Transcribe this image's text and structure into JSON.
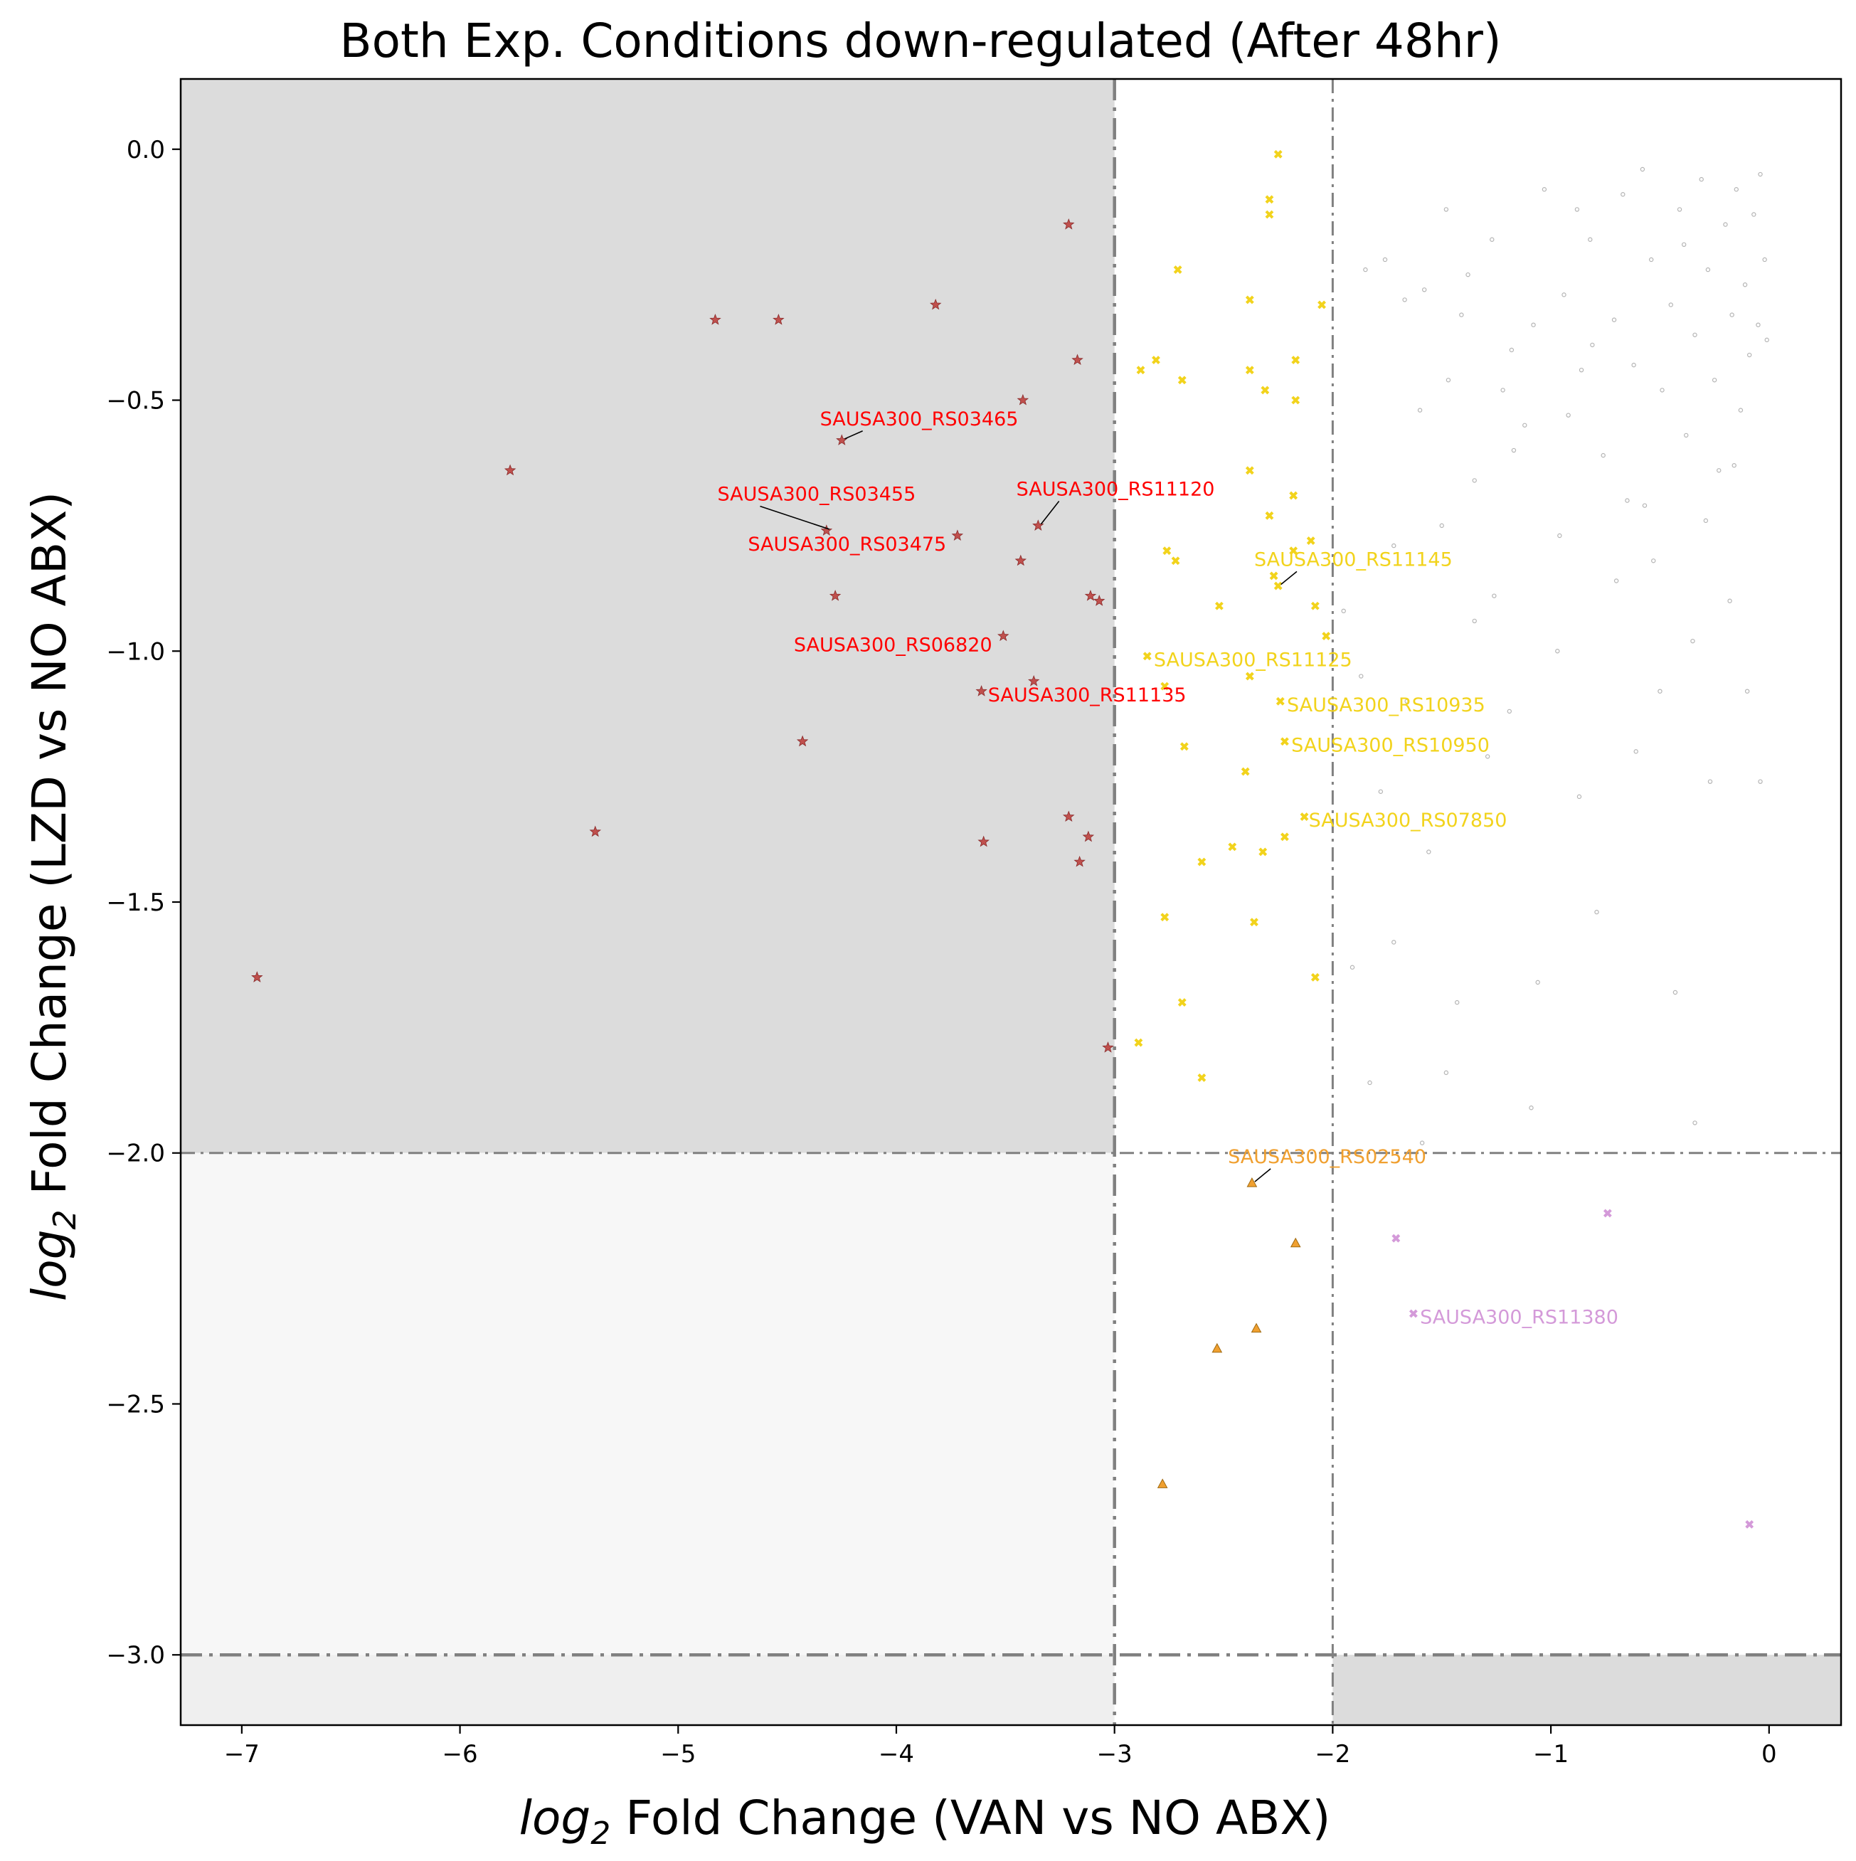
{
  "chart_data": {
    "type": "scatter",
    "title": "Both Exp. Conditions down-regulated (After 48hr)",
    "xlabel_prefix": "log",
    "xlabel_sub": "2",
    "xlabel_rest": " Fold Change (VAN vs NO ABX)",
    "ylabel_prefix": "log",
    "ylabel_sub": "2",
    "ylabel_rest": " Fold Change (LZD vs NO ABX)",
    "xlim": [
      -7.28,
      0.33
    ],
    "ylim": [
      -3.14,
      0.14
    ],
    "xticks": [
      -7,
      -6,
      -5,
      -4,
      -3,
      -2,
      -1,
      0
    ],
    "yticks": [
      0.0,
      -0.5,
      -1.0,
      -1.5,
      -2.0,
      -2.5,
      -3.0
    ],
    "xtick_labels": [
      "−7",
      "−6",
      "−5",
      "−4",
      "−3",
      "−2",
      "−1",
      "0"
    ],
    "ytick_labels": [
      "0.0",
      "−0.5",
      "−1.0",
      "−1.5",
      "−2.0",
      "−2.5",
      "−3.0"
    ],
    "grid": false,
    "threshold_lines": {
      "vertical": [
        -3,
        -2
      ],
      "horizontal": [
        -2,
        -3
      ]
    },
    "shaded_regions": [
      {
        "x": [
          -7.28,
          -3
        ],
        "y": [
          -2,
          0.14
        ],
        "color": "#dcdcdc"
      },
      {
        "x": [
          -7.28,
          -3
        ],
        "y": [
          -3,
          -2
        ],
        "color": "#f7f7f7"
      },
      {
        "x": [
          -7.28,
          -3
        ],
        "y": [
          -3.14,
          -3
        ],
        "color": "#efefef"
      },
      {
        "x": [
          -2,
          0.33
        ],
        "y": [
          -3.14,
          -3
        ],
        "color": "#dcdcdc"
      }
    ],
    "series": [
      {
        "marker": "star",
        "color": "#c0504d",
        "points": [
          [
            -6.93,
            -1.65
          ],
          [
            -5.77,
            -0.64
          ],
          [
            -5.38,
            -1.36
          ],
          [
            -4.83,
            -0.34
          ],
          [
            -4.54,
            -0.34
          ],
          [
            -4.43,
            -1.18
          ],
          [
            -4.32,
            -0.76
          ],
          [
            -4.28,
            -0.89
          ],
          [
            -4.25,
            -0.58
          ],
          [
            -3.82,
            -0.31
          ],
          [
            -3.72,
            -0.77
          ],
          [
            -3.61,
            -1.08
          ],
          [
            -3.6,
            -1.38
          ],
          [
            -3.51,
            -0.97
          ],
          [
            -3.43,
            -0.82
          ],
          [
            -3.42,
            -0.5
          ],
          [
            -3.37,
            -1.06
          ],
          [
            -3.35,
            -0.75
          ],
          [
            -3.21,
            -0.15
          ],
          [
            -3.21,
            -1.33
          ],
          [
            -3.17,
            -0.42
          ],
          [
            -3.16,
            -1.42
          ],
          [
            -3.12,
            -1.37
          ],
          [
            -3.11,
            -0.89
          ],
          [
            -3.07,
            -0.9
          ],
          [
            -3.03,
            -1.79
          ]
        ]
      },
      {
        "marker": "x",
        "color": "#f2d31c",
        "points": [
          [
            -2.25,
            -0.01
          ],
          [
            -2.29,
            -0.1
          ],
          [
            -2.29,
            -0.13
          ],
          [
            -2.71,
            -0.24
          ],
          [
            -2.38,
            -0.3
          ],
          [
            -2.05,
            -0.31
          ],
          [
            -2.88,
            -0.44
          ],
          [
            -2.81,
            -0.42
          ],
          [
            -2.69,
            -0.46
          ],
          [
            -2.38,
            -0.44
          ],
          [
            -2.31,
            -0.48
          ],
          [
            -2.17,
            -0.42
          ],
          [
            -2.17,
            -0.5
          ],
          [
            -2.38,
            -0.64
          ],
          [
            -2.18,
            -0.69
          ],
          [
            -2.29,
            -0.73
          ],
          [
            -2.76,
            -0.8
          ],
          [
            -2.72,
            -0.82
          ],
          [
            -2.18,
            -0.8
          ],
          [
            -2.1,
            -0.78
          ],
          [
            -2.27,
            -0.85
          ],
          [
            -2.25,
            -0.87
          ],
          [
            -2.52,
            -0.91
          ],
          [
            -2.08,
            -0.91
          ],
          [
            -2.03,
            -0.97
          ],
          [
            -2.85,
            -1.01
          ],
          [
            -2.77,
            -1.07
          ],
          [
            -2.38,
            -1.05
          ],
          [
            -2.24,
            -1.1
          ],
          [
            -2.22,
            -1.18
          ],
          [
            -2.68,
            -1.19
          ],
          [
            -2.4,
            -1.24
          ],
          [
            -2.13,
            -1.33
          ],
          [
            -2.22,
            -1.37
          ],
          [
            -2.46,
            -1.39
          ],
          [
            -2.32,
            -1.4
          ],
          [
            -2.6,
            -1.42
          ],
          [
            -2.77,
            -1.53
          ],
          [
            -2.36,
            -1.54
          ],
          [
            -2.08,
            -1.65
          ],
          [
            -2.69,
            -1.7
          ],
          [
            -2.89,
            -1.78
          ],
          [
            -2.6,
            -1.85
          ]
        ]
      },
      {
        "marker": "triangle",
        "color": "#f0a030",
        "points": [
          [
            -2.37,
            -2.06
          ],
          [
            -2.17,
            -2.18
          ],
          [
            -2.35,
            -2.35
          ],
          [
            -2.53,
            -2.39
          ],
          [
            -2.78,
            -2.66
          ]
        ]
      },
      {
        "marker": "x",
        "color": "#d49ad9",
        "points": [
          [
            -1.71,
            -2.17
          ],
          [
            -0.74,
            -2.12
          ],
          [
            -1.63,
            -2.32
          ],
          [
            -0.09,
            -2.74
          ]
        ]
      },
      {
        "marker": "dot",
        "color": "#b4b4b4",
        "points": [
          [
            -1.85,
            -0.24
          ],
          [
            -1.76,
            -0.22
          ],
          [
            -1.67,
            -0.3
          ],
          [
            -1.58,
            -0.28
          ],
          [
            -1.48,
            -0.12
          ],
          [
            -1.47,
            -0.46
          ],
          [
            -1.38,
            -0.25
          ],
          [
            -1.27,
            -0.18
          ],
          [
            -1.18,
            -0.4
          ],
          [
            -1.17,
            -0.6
          ],
          [
            -1.08,
            -0.35
          ],
          [
            -1.03,
            -0.08
          ],
          [
            -0.94,
            -0.29
          ],
          [
            -0.92,
            -0.53
          ],
          [
            -0.86,
            -0.44
          ],
          [
            -0.82,
            -0.18
          ],
          [
            -0.76,
            -0.61
          ],
          [
            -0.71,
            -0.34
          ],
          [
            -0.67,
            -0.09
          ],
          [
            -0.62,
            -0.43
          ],
          [
            -0.57,
            -0.71
          ],
          [
            -0.54,
            -0.22
          ],
          [
            -0.49,
            -0.48
          ],
          [
            -0.45,
            -0.31
          ],
          [
            -0.41,
            -0.12
          ],
          [
            -0.38,
            -0.57
          ],
          [
            -0.34,
            -0.37
          ],
          [
            -0.31,
            -0.06
          ],
          [
            -0.28,
            -0.24
          ],
          [
            -0.25,
            -0.46
          ],
          [
            -0.23,
            -0.64
          ],
          [
            -0.2,
            -0.15
          ],
          [
            -0.17,
            -0.33
          ],
          [
            -0.15,
            -0.08
          ],
          [
            -0.13,
            -0.52
          ],
          [
            -0.11,
            -0.27
          ],
          [
            -0.09,
            -0.41
          ],
          [
            -0.07,
            -0.13
          ],
          [
            -0.05,
            -0.35
          ],
          [
            -0.04,
            -0.05
          ],
          [
            -0.02,
            -0.22
          ],
          [
            -0.01,
            -0.38
          ],
          [
            -1.95,
            -0.92
          ],
          [
            -1.87,
            -1.05
          ],
          [
            -1.78,
            -1.28
          ],
          [
            -1.72,
            -0.79
          ],
          [
            -1.66,
            -1.1
          ],
          [
            -1.56,
            -1.4
          ],
          [
            -1.5,
            -0.75
          ],
          [
            -1.43,
            -1.7
          ],
          [
            -1.35,
            -0.94
          ],
          [
            -1.29,
            -1.21
          ],
          [
            -1.19,
            -1.12
          ],
          [
            -1.06,
            -1.66
          ],
          [
            -0.97,
            -1.0
          ],
          [
            -0.87,
            -1.29
          ],
          [
            -0.79,
            -1.52
          ],
          [
            -0.7,
            -0.86
          ],
          [
            -0.61,
            -1.2
          ],
          [
            -0.5,
            -1.08
          ],
          [
            -0.43,
            -1.68
          ],
          [
            -0.35,
            -0.98
          ],
          [
            -0.27,
            -1.26
          ],
          [
            -0.18,
            -0.9
          ],
          [
            -0.1,
            -1.08
          ],
          [
            -0.04,
            -1.26
          ],
          [
            -1.91,
            -1.63
          ],
          [
            -1.83,
            -1.86
          ],
          [
            -1.72,
            -1.58
          ],
          [
            -1.59,
            -1.98
          ],
          [
            -1.48,
            -1.84
          ],
          [
            -1.09,
            -1.91
          ],
          [
            -0.34,
            -1.94
          ],
          [
            -1.6,
            -0.52
          ],
          [
            -1.35,
            -0.66
          ],
          [
            -1.12,
            -0.55
          ],
          [
            -0.96,
            -0.77
          ],
          [
            -0.65,
            -0.7
          ],
          [
            -0.53,
            -0.82
          ],
          [
            -0.29,
            -0.74
          ],
          [
            -0.16,
            -0.63
          ],
          [
            -1.26,
            -0.89
          ],
          [
            -1.41,
            -0.33
          ],
          [
            -0.81,
            -0.39
          ],
          [
            -0.39,
            -0.19
          ],
          [
            -0.58,
            -0.04
          ],
          [
            -0.88,
            -0.12
          ],
          [
            -1.22,
            -0.48
          ]
        ]
      }
    ],
    "annotations": [
      {
        "text": "SAUSA300_RS03465",
        "color": "#ff0000",
        "point": [
          -4.25,
          -0.58
        ],
        "label_at": [
          -4.35,
          -0.55
        ],
        "leader": true
      },
      {
        "text": "SAUSA300_RS03455",
        "color": "#ff0000",
        "point": [
          -4.32,
          -0.76
        ],
        "label_at": [
          -4.82,
          -0.7
        ],
        "leader": true
      },
      {
        "text": "SAUSA300_RS11120",
        "color": "#ff0000",
        "point": [
          -3.35,
          -0.75
        ],
        "label_at": [
          -3.45,
          -0.69
        ],
        "leader": true
      },
      {
        "text": "SAUSA300_RS03475",
        "color": "#ff0000",
        "point": [
          -3.72,
          -0.77
        ],
        "label_at": [
          -4.68,
          -0.8
        ],
        "leader": false
      },
      {
        "text": "SAUSA300_RS06820",
        "color": "#ff0000",
        "point": [
          -3.51,
          -0.97
        ],
        "label_at": [
          -4.47,
          -1.0
        ],
        "leader": false
      },
      {
        "text": "SAUSA300_RS11135",
        "color": "#ff0000",
        "point": [
          -3.61,
          -1.08
        ],
        "label_at": [
          -3.58,
          -1.1
        ],
        "leader": false
      },
      {
        "text": "SAUSA300_RS11145",
        "color": "#f2d31c",
        "point": [
          -2.25,
          -0.87
        ],
        "label_at": [
          -2.36,
          -0.83
        ],
        "leader": true
      },
      {
        "text": "SAUSA300_RS11125",
        "color": "#f2d31c",
        "point": [
          -2.85,
          -1.01
        ],
        "label_at": [
          -2.82,
          -1.03
        ],
        "leader": false
      },
      {
        "text": "SAUSA300_RS10935",
        "color": "#f2d31c",
        "point": [
          -2.24,
          -1.1
        ],
        "label_at": [
          -2.21,
          -1.12
        ],
        "leader": false
      },
      {
        "text": "SAUSA300_RS10950",
        "color": "#f2d31c",
        "point": [
          -2.22,
          -1.18
        ],
        "label_at": [
          -2.19,
          -1.2
        ],
        "leader": false
      },
      {
        "text": "SAUSA300_RS07850",
        "color": "#f2d31c",
        "point": [
          -2.13,
          -1.33
        ],
        "label_at": [
          -2.11,
          -1.35
        ],
        "leader": false
      },
      {
        "text": "SAUSA300_RS02540",
        "color": "#f0a030",
        "point": [
          -2.37,
          -2.06
        ],
        "label_at": [
          -2.48,
          -2.02
        ],
        "leader": true
      },
      {
        "text": "SAUSA300_RS11380",
        "color": "#d49ad9",
        "point": [
          -1.63,
          -2.32
        ],
        "label_at": [
          -1.6,
          -2.34
        ],
        "leader": false
      }
    ]
  }
}
